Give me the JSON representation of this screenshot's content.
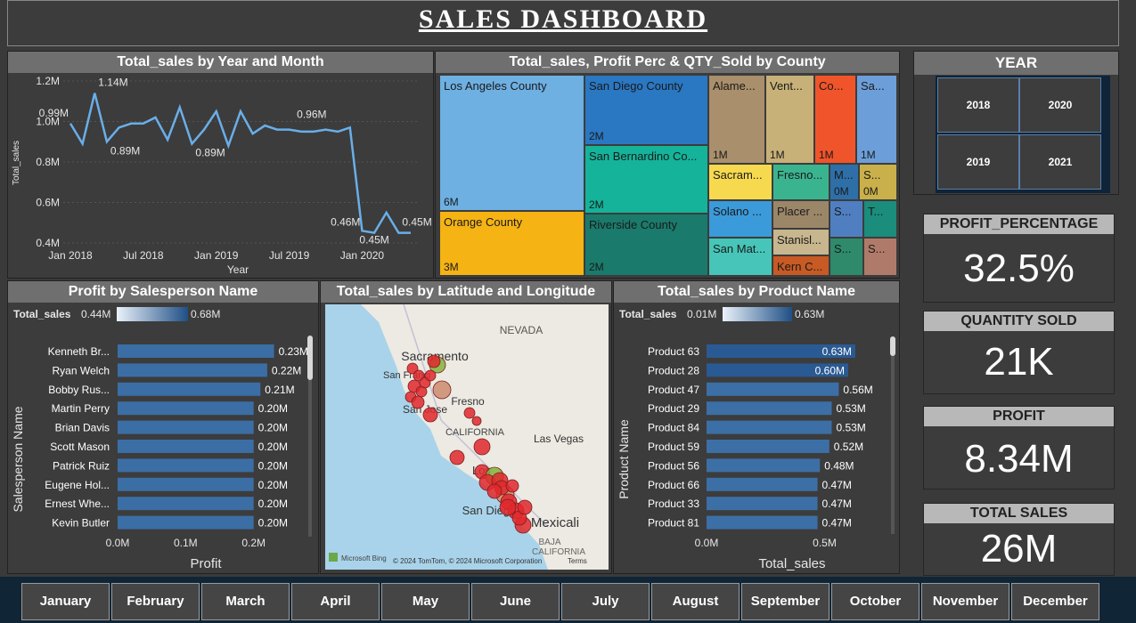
{
  "header": {
    "title": "SALES DASHBOARD"
  },
  "line_chart": {
    "title": "Total_sales by Year and Month",
    "ylabel": "Total_sales",
    "xlabel": "Year",
    "yticks": [
      "1.2M",
      "1.0M",
      "0.8M",
      "0.6M",
      "0.4M"
    ],
    "xticks": [
      "Jan 2018",
      "Jul 2018",
      "Jan 2019",
      "Jul 2019",
      "Jan 2020"
    ],
    "labels": [
      "0.99M",
      "1.14M",
      "0.89M",
      "0.89M",
      "0.96M",
      "0.46M",
      "0.45M",
      "0.45M"
    ]
  },
  "treemap": {
    "title": "Total_sales, Profit Perc & QTY_Sold by County",
    "cells": [
      {
        "name": "Los Angeles County",
        "value": "6M",
        "color": "#6eb0e2"
      },
      {
        "name": "Orange County",
        "value": "3M",
        "color": "#f5b314"
      },
      {
        "name": "San Diego County",
        "value": "2M",
        "color": "#2a77c2"
      },
      {
        "name": "San Bernardino Co...",
        "value": "2M",
        "color": "#14b39a"
      },
      {
        "name": "Riverside County",
        "value": "2M",
        "color": "#1a7a6b"
      },
      {
        "name": "Alame...",
        "value": "1M",
        "color": "#a98f6b"
      },
      {
        "name": "Vent...",
        "value": "1M",
        "color": "#c7b178"
      },
      {
        "name": "Co...",
        "value": "1M",
        "color": "#f0542a"
      },
      {
        "name": "Sa...",
        "value": "1M",
        "color": "#6c9fd9"
      },
      {
        "name": "Sacram...",
        "value": "",
        "color": "#f7d94f"
      },
      {
        "name": "Fresno...",
        "value": "",
        "color": "#3ab48f"
      },
      {
        "name": "M...",
        "value": "0M",
        "color": "#2f6fa8"
      },
      {
        "name": "S...",
        "value": "0M",
        "color": "#c9b04a"
      },
      {
        "name": "Solano ...",
        "value": "",
        "color": "#3b9ad9"
      },
      {
        "name": "Placer ...",
        "value": "",
        "color": "#9b8768"
      },
      {
        "name": "S...",
        "value": "",
        "color": "#4f7fc0"
      },
      {
        "name": "T...",
        "value": "",
        "color": "#1b8d7c"
      },
      {
        "name": "San Mat...",
        "value": "",
        "color": "#46c5b8"
      },
      {
        "name": "Stanisl...",
        "value": "",
        "color": "#c8b68e"
      },
      {
        "name": "Kern C...",
        "value": "",
        "color": "#c85a24"
      },
      {
        "name": "S...",
        "value": "",
        "color": "#2e8a6a"
      },
      {
        "name": "S...",
        "value": "",
        "color": "#b07a6a"
      }
    ]
  },
  "year_slicer": {
    "title": "YEAR",
    "years": [
      "2018",
      "2020",
      "2019",
      "2021"
    ]
  },
  "kpis": [
    {
      "label": "PROFIT_PERCENTAGE",
      "value": "32.5%"
    },
    {
      "label": "QUANTITY SOLD",
      "value": "21K"
    },
    {
      "label": "PROFIT",
      "value": "8.34M"
    },
    {
      "label": "TOTAL SALES",
      "value": "26M"
    }
  ],
  "salesperson_chart": {
    "title": "Profit by Salesperson Name",
    "legend_label": "Total_sales",
    "legend_min": "0.44M",
    "legend_max": "0.68M",
    "ylabel": "Salesperson Name",
    "xlabel": "Profit",
    "xticks": [
      "0.0M",
      "0.1M",
      "0.2M"
    ]
  },
  "map": {
    "title": "Total_sales by Latitude and Longitude",
    "labels": [
      "NEVADA",
      "Sacramento",
      "San Franci",
      "San Jose",
      "Fresno",
      "CALIFORNIA",
      "Las Vegas",
      "Los",
      "San Diego",
      "Mexicali",
      "BAJA",
      "CALIFORNIA"
    ],
    "attribution": "© 2024 TomTom, © 2024 Microsoft Corporation",
    "terms": "Terms",
    "brand": "Microsoft Bing"
  },
  "product_chart": {
    "title": "Total_sales by Product Name",
    "legend_label": "Total_sales",
    "legend_min": "0.01M",
    "legend_max": "0.63M",
    "ylabel": "Product Name",
    "xlabel": "Total_sales",
    "xticks": [
      "0.0M",
      "0.5M"
    ]
  },
  "months": [
    "January",
    "February",
    "March",
    "April",
    "May",
    "June",
    "July",
    "August",
    "September",
    "October",
    "November",
    "December"
  ],
  "chart_data": [
    {
      "type": "line",
      "title": "Total_sales by Year and Month",
      "xlabel": "Year",
      "ylabel": "Total_sales",
      "ylim": [
        0.4,
        1.2
      ],
      "x": [
        "2018-01",
        "2018-02",
        "2018-03",
        "2018-04",
        "2018-05",
        "2018-06",
        "2018-07",
        "2018-08",
        "2018-09",
        "2018-10",
        "2018-11",
        "2018-12",
        "2019-01",
        "2019-02",
        "2019-03",
        "2019-04",
        "2019-05",
        "2019-06",
        "2019-07",
        "2019-08",
        "2019-09",
        "2019-10",
        "2019-11",
        "2019-12",
        "2020-01",
        "2020-02",
        "2020-03",
        "2020-04",
        "2020-05"
      ],
      "series": [
        {
          "values": [
            0.99,
            0.89,
            1.14,
            0.9,
            0.97,
            0.99,
            0.99,
            1.02,
            0.91,
            1.07,
            0.89,
            0.96,
            1.05,
            0.88,
            1.05,
            0.94,
            0.98,
            0.96,
            0.96,
            0.95,
            0.95,
            0.96,
            0.95,
            0.97,
            0.46,
            0.45,
            0.55,
            0.45,
            0.45
          ]
        }
      ]
    },
    {
      "type": "bar",
      "title": "Profit by Salesperson Name",
      "xlabel": "Profit",
      "ylabel": "Salesperson Name",
      "xlim": [
        0,
        0.3
      ],
      "categories": [
        "Kenneth Br...",
        "Ryan Welch",
        "Bobby Rus...",
        "Martin Perry",
        "Brian Davis",
        "Scott Mason",
        "Patrick Ruiz",
        "Eugene Hol...",
        "Ernest Whe...",
        "Kevin Butler"
      ],
      "values": [
        0.23,
        0.22,
        0.21,
        0.2,
        0.2,
        0.2,
        0.2,
        0.2,
        0.2,
        0.2
      ],
      "labels": [
        "0.23M",
        "0.22M",
        "0.21M",
        "0.20M",
        "0.20M",
        "0.20M",
        "0.20M",
        "0.20M",
        "0.20M",
        "0.20M"
      ]
    },
    {
      "type": "bar",
      "title": "Total_sales by Product Name",
      "xlabel": "Total_sales",
      "ylabel": "Product Name",
      "xlim": [
        0,
        0.8
      ],
      "categories": [
        "Product 63",
        "Product 28",
        "Product 47",
        "Product 29",
        "Product 84",
        "Product 59",
        "Product 56",
        "Product 66",
        "Product 33",
        "Product 81"
      ],
      "values": [
        0.63,
        0.6,
        0.56,
        0.53,
        0.53,
        0.52,
        0.48,
        0.47,
        0.47,
        0.47
      ],
      "labels": [
        "0.63M",
        "0.60M",
        "0.56M",
        "0.53M",
        "0.53M",
        "0.52M",
        "0.48M",
        "0.47M",
        "0.47M",
        "0.47M"
      ]
    }
  ]
}
